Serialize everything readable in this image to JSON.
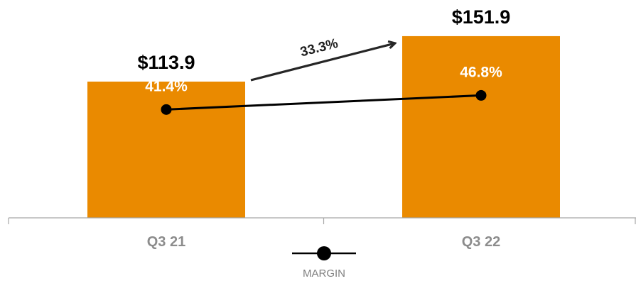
{
  "chart_data": {
    "type": "bar",
    "categories": [
      "Q3 21",
      "Q3 22"
    ],
    "values": [
      113.9,
      151.9
    ],
    "value_labels": [
      "$113.9",
      "$151.9"
    ],
    "ylim": [
      0,
      175
    ],
    "margin_series": {
      "name": "MARGIN",
      "type": "line",
      "values": [
        41.4,
        46.8
      ],
      "labels": [
        "41.4%",
        "46.8%"
      ],
      "ylim": [
        0,
        80
      ]
    },
    "growth_annotation": "33.3%",
    "legend": {
      "label": "MARGIN",
      "position": "bottom-center"
    },
    "grid": false,
    "colors": {
      "bar": "#EA8A00",
      "line": "#000000",
      "axis": "#a6a6a6",
      "tick_label": "#8c8c8c",
      "growth_arrow": "#262626"
    }
  }
}
